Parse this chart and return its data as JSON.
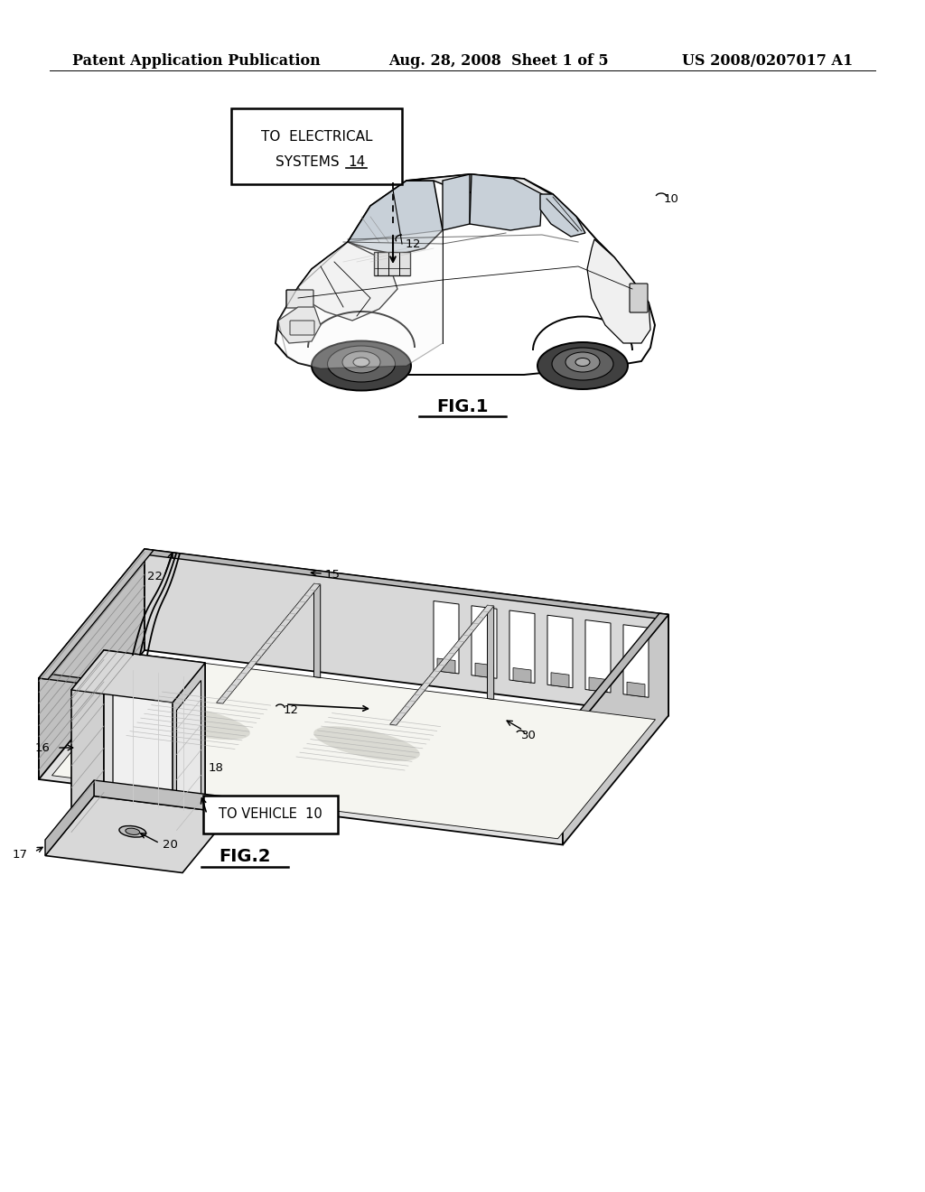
{
  "background_color": "#ffffff",
  "header_left": "Patent Application Publication",
  "header_center": "Aug. 28, 2008  Sheet 1 of 5",
  "header_right": "US 2008/0207017 A1",
  "header_fontsize": 11.5
}
